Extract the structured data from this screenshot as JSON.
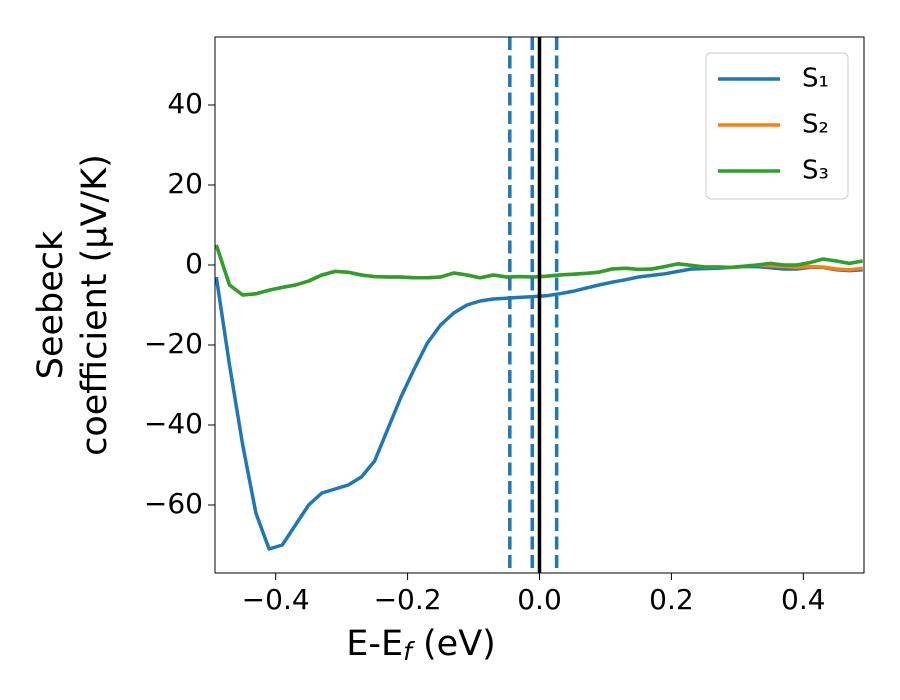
{
  "chart_data": {
    "type": "line",
    "xlabel": [
      "E-E",
      "f",
      " (eV)"
    ],
    "ylabel": [
      "Seebeck",
      "coefficient  (μV/K)"
    ],
    "x": [
      -0.49,
      -0.47,
      -0.45,
      -0.43,
      -0.41,
      -0.39,
      -0.37,
      -0.35,
      -0.33,
      -0.31,
      -0.29,
      -0.27,
      -0.25,
      -0.23,
      -0.21,
      -0.19,
      -0.17,
      -0.15,
      -0.13,
      -0.11,
      -0.09,
      -0.07,
      -0.05,
      -0.03,
      -0.01,
      0.01,
      0.03,
      0.05,
      0.07,
      0.09,
      0.11,
      0.13,
      0.15,
      0.17,
      0.19,
      0.21,
      0.23,
      0.25,
      0.27,
      0.29,
      0.31,
      0.33,
      0.35,
      0.37,
      0.39,
      0.41,
      0.43,
      0.45,
      0.47,
      0.49
    ],
    "series": [
      {
        "name": "S₁",
        "color": "#1f77b4",
        "values": [
          -3,
          -25,
          -45,
          -62,
          -71,
          -70,
          -65,
          -60,
          -57,
          -56,
          -55,
          -53,
          -49,
          -41,
          -33,
          -26,
          -19.5,
          -15,
          -12,
          -10,
          -9,
          -8.5,
          -8.3,
          -8.1,
          -7.9,
          -7.7,
          -7.2,
          -6.6,
          -5.8,
          -5,
          -4.3,
          -3.7,
          -3,
          -2.6,
          -2.2,
          -1.6,
          -1,
          -0.9,
          -0.8,
          -0.6,
          -0.4,
          -0.4,
          -0.7,
          -1,
          -1,
          -0.6,
          -0.6,
          -1.2,
          -1.4,
          -1.2
        ]
      },
      {
        "name": "S₂",
        "color": "#ff7f0e",
        "values": [
          5,
          -5,
          -7.5,
          -7.2,
          -6.3,
          -5.6,
          -5,
          -4,
          -2.5,
          -1.6,
          -1.8,
          -2.5,
          -2.9,
          -3,
          -3,
          -3.2,
          -3.2,
          -3,
          -2,
          -2.5,
          -3.2,
          -2.5,
          -3,
          -2.9,
          -3,
          -2.8,
          -2.5,
          -2.3,
          -2.1,
          -1.8,
          -1,
          -0.8,
          -1.1,
          -1,
          -0.4,
          0.3,
          -0.1,
          -0.5,
          -0.5,
          -0.6,
          -0.3,
          0,
          -0.2,
          -0.4,
          -0.6,
          -0.4,
          -0.5,
          -1,
          -1.2,
          -0.8
        ]
      },
      {
        "name": "S₃",
        "color": "#2ca02c",
        "values": [
          5,
          -5,
          -7.5,
          -7.2,
          -6.3,
          -5.6,
          -5,
          -4,
          -2.5,
          -1.6,
          -1.8,
          -2.5,
          -2.9,
          -3,
          -3,
          -3.2,
          -3.2,
          -3,
          -2,
          -2.5,
          -3.2,
          -2.5,
          -3,
          -2.9,
          -3,
          -2.8,
          -2.5,
          -2.3,
          -2.1,
          -1.8,
          -1,
          -0.8,
          -1.1,
          -1,
          -0.4,
          0.3,
          -0.1,
          -0.5,
          -0.5,
          -0.6,
          -0.3,
          0,
          0.4,
          0,
          0,
          0.6,
          1.5,
          1,
          0.4,
          1
        ]
      }
    ],
    "vlines": [
      {
        "x": -0.045,
        "color": "#1f77b4",
        "dashed": true
      },
      {
        "x": -0.011,
        "color": "#1f77b4",
        "dashed": true
      },
      {
        "x": 0.026,
        "color": "#1f77b4",
        "dashed": true
      },
      {
        "x": 0,
        "color": "#000000",
        "dashed": false
      }
    ],
    "xlim": [
      -0.492,
      0.492
    ],
    "ylim": [
      -77,
      57
    ],
    "xticks": [
      {
        "value": -0.4,
        "label": "−0.4"
      },
      {
        "value": -0.2,
        "label": "−0.2"
      },
      {
        "value": 0,
        "label": "0.0"
      },
      0.2,
      0.4
    ],
    "yticks": [
      {
        "value": -60,
        "label": "−60"
      },
      {
        "value": -40,
        "label": "−40"
      },
      {
        "value": -20,
        "label": "−20"
      },
      0,
      20,
      40
    ],
    "legend": "upper right",
    "grid": false
  }
}
